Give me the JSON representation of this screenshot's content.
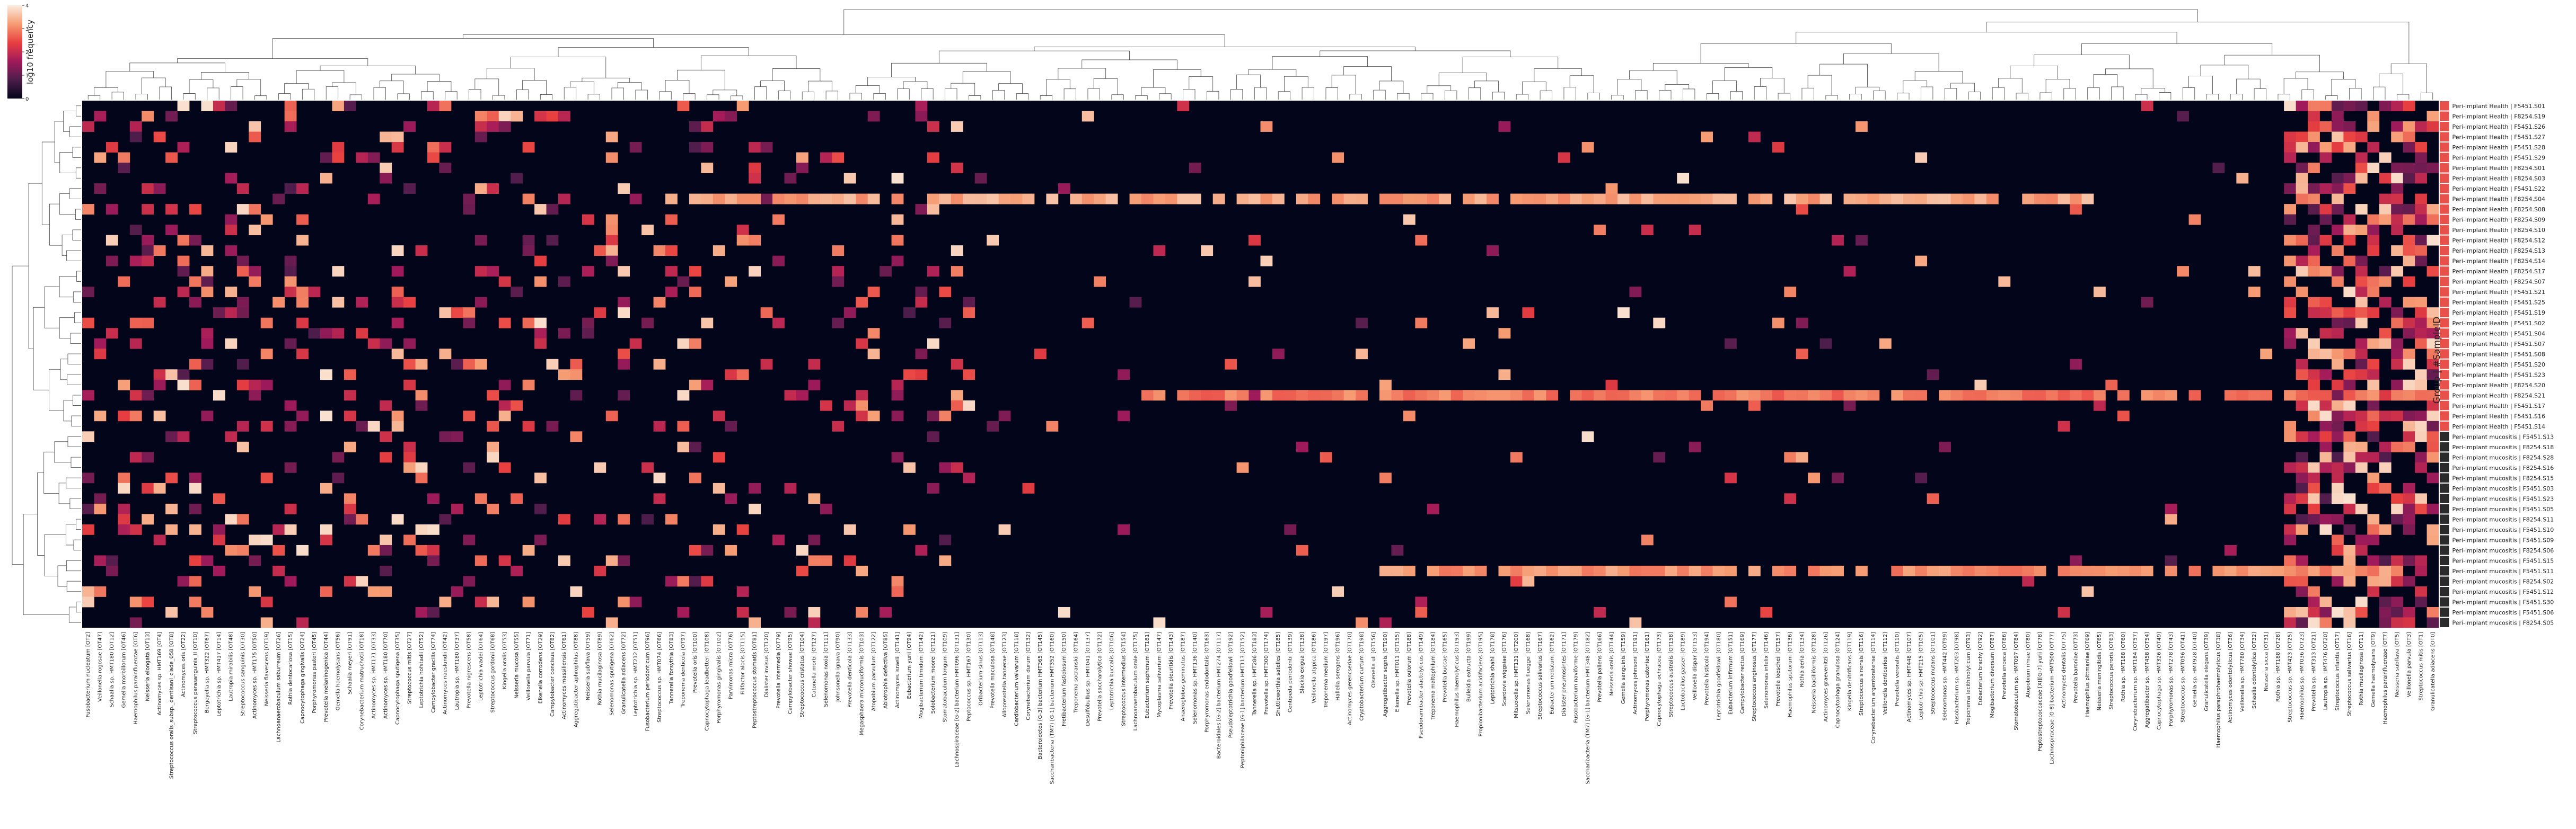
{
  "chart_data": {
    "type": "heatmap",
    "title": "",
    "colorbar": {
      "label": "log10 frequency",
      "ticks": [
        "0",
        "1",
        "2",
        "3",
        "4"
      ],
      "range": [
        0,
        4
      ],
      "colors": [
        "#03051a",
        "#4c1d4b",
        "#a11a5b",
        "#e83f3f",
        "#f69c73",
        "#faebdd"
      ]
    },
    "ylabel": "Group | #SampleID",
    "rows": [
      {
        "label": "Peri-implant Health | F5451.S01",
        "group": "Peri-implant Health"
      },
      {
        "label": "Peri-implant Health | F8254.S19",
        "group": "Peri-implant Health"
      },
      {
        "label": "Peri-implant Health | F5451.S26",
        "group": "Peri-implant Health"
      },
      {
        "label": "Peri-implant Health | F5451.S27",
        "group": "Peri-implant Health"
      },
      {
        "label": "Peri-implant Health | F5451.S28",
        "group": "Peri-implant Health"
      },
      {
        "label": "Peri-implant Health | F5451.S29",
        "group": "Peri-implant Health"
      },
      {
        "label": "Peri-implant Health | F8254.S01",
        "group": "Peri-implant Health"
      },
      {
        "label": "Peri-implant Health | F8254.S03",
        "group": "Peri-implant Health"
      },
      {
        "label": "Peri-implant Health | F5451.S22",
        "group": "Peri-implant Health"
      },
      {
        "label": "Peri-implant Health | F8254.S04",
        "group": "Peri-implant Health"
      },
      {
        "label": "Peri-implant Health | F8254.S08",
        "group": "Peri-implant Health"
      },
      {
        "label": "Peri-implant Health | F8254.S09",
        "group": "Peri-implant Health"
      },
      {
        "label": "Peri-implant Health | F8254.S10",
        "group": "Peri-implant Health"
      },
      {
        "label": "Peri-implant Health | F8254.S12",
        "group": "Peri-implant Health"
      },
      {
        "label": "Peri-implant Health | F8254.S13",
        "group": "Peri-implant Health"
      },
      {
        "label": "Peri-implant Health | F8254.S14",
        "group": "Peri-implant Health"
      },
      {
        "label": "Peri-implant Health | F8254.S17",
        "group": "Peri-implant Health"
      },
      {
        "label": "Peri-implant Health | F8254.S07",
        "group": "Peri-implant Health"
      },
      {
        "label": "Peri-implant Health | F5451.S21",
        "group": "Peri-implant Health"
      },
      {
        "label": "Peri-implant Health | F5451.S25",
        "group": "Peri-implant Health"
      },
      {
        "label": "Peri-implant Health | F5451.S19",
        "group": "Peri-implant Health"
      },
      {
        "label": "Peri-implant Health | F5451.S02",
        "group": "Peri-implant Health"
      },
      {
        "label": "Peri-implant Health | F5451.S04",
        "group": "Peri-implant Health"
      },
      {
        "label": "Peri-implant Health | F5451.S07",
        "group": "Peri-implant Health"
      },
      {
        "label": "Peri-implant Health | F5451.S08",
        "group": "Peri-implant Health"
      },
      {
        "label": "Peri-implant Health | F5451.S20",
        "group": "Peri-implant Health"
      },
      {
        "label": "Peri-implant Health | F5451.S23",
        "group": "Peri-implant Health"
      },
      {
        "label": "Peri-implant Health | F8254.S20",
        "group": "Peri-implant Health"
      },
      {
        "label": "Peri-implant Health | F8254.S21",
        "group": "Peri-implant Health"
      },
      {
        "label": "Peri-implant Health | F5451.S17",
        "group": "Peri-implant Health"
      },
      {
        "label": "Peri-implant Health | F5451.S16",
        "group": "Peri-implant Health"
      },
      {
        "label": "Peri-implant Health | F5451.S14",
        "group": "Peri-implant Health"
      },
      {
        "label": "Peri-implant mucositis | F5451.S13",
        "group": "Peri-implant mucositis"
      },
      {
        "label": "Peri-implant mucositis | F8254.S18",
        "group": "Peri-implant mucositis"
      },
      {
        "label": "Peri-implant mucositis | F8254.S28",
        "group": "Peri-implant mucositis"
      },
      {
        "label": "Peri-implant mucositis | F8254.S16",
        "group": "Peri-implant mucositis"
      },
      {
        "label": "Peri-implant mucositis | F8254.S15",
        "group": "Peri-implant mucositis"
      },
      {
        "label": "Peri-implant mucositis | F5451.S03",
        "group": "Peri-implant mucositis"
      },
      {
        "label": "Peri-implant mucositis | F5451.S23",
        "group": "Peri-implant mucositis"
      },
      {
        "label": "Peri-implant mucositis | F5451.S05",
        "group": "Peri-implant mucositis"
      },
      {
        "label": "Peri-implant mucositis | F8254.S11",
        "group": "Peri-implant mucositis"
      },
      {
        "label": "Peri-implant mucositis | F5451.S10",
        "group": "Peri-implant mucositis"
      },
      {
        "label": "Peri-implant mucositis | F5451.S09",
        "group": "Peri-implant mucositis"
      },
      {
        "label": "Peri-implant mucositis | F8254.S06",
        "group": "Peri-implant mucositis"
      },
      {
        "label": "Peri-implant mucositis | F5451.S15",
        "group": "Peri-implant mucositis"
      },
      {
        "label": "Peri-implant mucositis | F5451.S11",
        "group": "Peri-implant mucositis"
      },
      {
        "label": "Peri-implant mucositis | F8254.S02",
        "group": "Peri-implant mucositis"
      },
      {
        "label": "Peri-implant mucositis | F5451.S12",
        "group": "Peri-implant mucositis"
      },
      {
        "label": "Peri-implant mucositis | F5451.S30",
        "group": "Peri-implant mucositis"
      },
      {
        "label": "Peri-implant mucositis | F5451.S06",
        "group": "Peri-implant mucositis"
      },
      {
        "label": "Peri-implant mucositis | F8254.S05",
        "group": "Peri-implant mucositis"
      }
    ],
    "group_colors": {
      "Peri-implant Health": "#e8504a",
      "Peri-implant mucositis": "#2b2b2b"
    },
    "columns": [
      "Fusobacterium nucleatum [OT2]",
      "Veillonella rogosae [OT47]",
      "Schaalia sp. HMT180 [OT12]",
      "Gemella morbillorum [OT46]",
      "Haemophilus parainfluenzae [OT6]",
      "Neisseria elongata [OT13]",
      "Actinomyces sp. HMT169 [OT4]",
      "Streptococcus oralis_subsp._dentisani_clade_058 [OT8]",
      "Actinomyces oris [OT22]",
      "Streptococcus parasanguinis_II [OT10]",
      "Bergeyella sp. HMT322 [OT67]",
      "Leptotrichia sp. HMT417 [OT14]",
      "Lautropia mirabilis [OT48]",
      "Streptococcus sanguinis [OT30]",
      "Actinomyces sp. HMT175 [OT50]",
      "Neisseria flavescens [OT19]",
      "Lachnoanaerobaculum saburreum [OT26]",
      "Rothia dentocariosa [OT15]",
      "Capnocytophaga gingivalis [OT24]",
      "Porphyromonas pasteri [OT45]",
      "Prevotella melaninogenica [OT44]",
      "Gemella haemolysans [OT56]",
      "Schaalia meyeri [OT91]",
      "Corynebacterium matruchotii [OT18]",
      "Actinomyces sp. HMT171 [OT33]",
      "Actinomyces sp. HMT180 [OT70]",
      "Capnocytophaga sputigena [OT35]",
      "Streptococcus mitis [OT27]",
      "Leptotrichia hofstadii [OT52]",
      "Campylobacter gracilis [OT74]",
      "Actinomyces naeslundii [OT42]",
      "Lautropia sp. HMT180 [OT37]",
      "Prevotella nigrescens [OT58]",
      "Leptotrichia wadei [OT64]",
      "Streptococcus gordonii [OT68]",
      "Kingella oralis [OT53]",
      "Neisseria mucosa [OT55]",
      "Veillonella parvula [OT71]",
      "Eikenella corrodens [OT29]",
      "Campylobacter concisus [OT82]",
      "Actinomyces massiliensis [OT61]",
      "Aggregatibacter aphrophilus [OT88]",
      "Neisseria subflava [OT59]",
      "Rothia mucilaginosa [OT89]",
      "Selenomonas sputigena [OT62]",
      "Granulicatella adiacens [OT72]",
      "Leptotrichia sp. HMT212 [OT51]",
      "Fusobacterium periodonticum [OT96]",
      "Streptococcus sp. HMT074 [OT66]",
      "Tannerella forsythia [OT83]",
      "Treponema denticola [OT97]",
      "Prevotella oris [OT100]",
      "Capnocytophaga leadbetteri [OT108]",
      "Porphyromonas gingivalis [OT102]",
      "Parvimonas micra [OT76]",
      "Filifactor alocis [OT115]",
      "Peptostreptococcus stomatis [OT81]",
      "Dialister invisus [OT120]",
      "Prevotella intermedia [OT79]",
      "Campylobacter showae [OT95]",
      "Streptococcus cristatus [OT104]",
      "Catonella morbi [OT127]",
      "Selenomonas noxia [OT111]",
      "Johnsonella ignava [OT90]",
      "Prevotella denticola [OT133]",
      "Megasphaera micronuciformis [OT103]",
      "Atopobium parvulum [OT122]",
      "Abiotrophia defectiva [OT85]",
      "Actinomyces israelii [OT141]",
      "Eubacterium yurii [OT94]",
      "Mogibacterium timidum [OT142]",
      "Solobacterium moorei [OT121]",
      "Stomatobaculum longum [OT109]",
      "Lachnospiraceae [G-2] bacterium HMT096 [OT131]",
      "Peptococcus sp. HMT167 [OT130]",
      "Oribacterium sinus [OT113]",
      "Prevotella maculosa [OT148]",
      "Alloprevotella tannerae [OT123]",
      "Cardiobacterium valvarum [OT118]",
      "Corynebacterium durum [OT132]",
      "Bacteroidetes [G-3] bacterium HMT365 [OT145]",
      "Saccharibacteria (TM7) [G-1] bacterium HMT352 [OT160]",
      "Fretibacterium fastidiosum [OT150]",
      "Treponema socranskii [OT164]",
      "Desulfobulbus sp. HMT041 [OT137]",
      "Prevotella saccharolytica [OT172]",
      "Leptotrichia buccalis [OT106]",
      "Streptococcus intermedius [OT154]",
      "Lachnoanaerobaculum orale [OT175]",
      "Eubacterium saphenum [OT181]",
      "Mycoplasma salivarium [OT147]",
      "Prevotella pleuritidis [OT143]",
      "Anaeroglobus geminatus [OT187]",
      "Selenomonas sp. HMT136 [OT140]",
      "Porphyromonas endodontalis [OT163]",
      "Bacteroidales [G-2] bacterium HMT274 [OT117]",
      "Pseudoleptotrichia goodfellowii [OT192]",
      "Peptoniphilaceae [G-1] bacterium HMT113 [OT152]",
      "Tannerella sp. HMT286 [OT183]",
      "Prevotella sp. HMT300 [OT174]",
      "Shuttleworthia satelles [OT185]",
      "Centipeda periodontii [OT139]",
      "Slackia exigua [OT138]",
      "Veillonella atypica [OT186]",
      "Treponema medium [OT197]",
      "Hallella seregens [OT196]",
      "Actinomyces gerencseriae [OT170]",
      "Cryptobacterium curtum [OT198]",
      "Olsenella uli [OT156]",
      "Aggregatibacter segnis [OT190]",
      "Eikenella sp. HMT011 [OT155]",
      "Prevotella oulorum [OT188]",
      "Pseudoramibacter alactolyticus [OT149]",
      "Treponema maltophilum [OT184]",
      "Prevotella buccae [OT165]",
      "Haemophilus haemolyticus [OT193]",
      "Bulleidia extructa [OT199]",
      "Propionibacterium acidifaciens [OT195]",
      "Leptotrichia shahii [OT178]",
      "Scardovia wiggsiae [OT176]",
      "Mitsuokella sp. HMT131 [OT200]",
      "Selenomonas flueggei [OT168]",
      "Streptococcus salivarius [OT167]",
      "Eubacterium nodatum [OT162]",
      "Dialister pneumosintes [OT171]",
      "Fusobacterium naviforme [OT179]",
      "Saccharibacteria (TM7) [G-1] bacterium HMT348 [OT182]",
      "Prevotella pallens [OT166]",
      "Neisseria oralis [OT144]",
      "Gemella sanguinis [OT159]",
      "Actinomyces johnsonii [OT191]",
      "Porphyromonas catoniae [OT161]",
      "Capnocytophaga ochracea [OT173]",
      "Streptococcus australis [OT158]",
      "Lactobacillus gasseri [OT189]",
      "Veillonella dispar [OT153]",
      "Prevotella histicola [OT194]",
      "Leptotrichia goodfellowii [OT180]",
      "Eubacterium infirmum [OT151]",
      "Campylobacter rectus [OT169]",
      "Streptococcus anginosus [OT177]",
      "Selenomonas infelix [OT146]",
      "Prevotella loescheii [OT157]",
      "Haemophilus sputorum [OT136]",
      "Rothia aeria [OT134]",
      "Neisseria bacilliformis [OT128]",
      "Actinomyces graevenitzii [OT126]",
      "Capnocytophaga granulosa [OT124]",
      "Kingella denitrificans [OT119]",
      "Streptococcus sinensis [OT116]",
      "Corynebacterium argentoratense [OT114]",
      "Veillonella denticariosi [OT112]",
      "Prevotella veroralis [OT110]",
      "Actinomyces sp. HMT448 [OT107]",
      "Leptotrichia sp. HMT215 [OT105]",
      "Streptococcus mutans [OT101]",
      "Selenomonas sp. HMT442 [OT99]",
      "Fusobacterium sp. HMT203 [OT98]",
      "Treponema lecithinolyticum [OT93]",
      "Eubacterium brachy [OT92]",
      "Mogibacterium diversum [OT87]",
      "Prevotella enoeca [OT86]",
      "Stomatobaculum sp. HMT097 [OT84]",
      "Atopobium rimae [OT80]",
      "Peptostreptococcaceae [XI][G-7] yurii [OT78]",
      "Lachnospiraceae [G-8] bacterium HMT500 [OT77]",
      "Actinomyces dentalis [OT75]",
      "Prevotella baroniae [OT73]",
      "Haemophilus pittmaniae [OT69]",
      "Neisseria meningitidis [OT65]",
      "Streptococcus peroris [OT63]",
      "Rothia sp. HMT188 [OT60]",
      "Corynebacterium sp. HMT184 [OT57]",
      "Aggregatibacter sp. HMT458 [OT54]",
      "Capnocytophaga sp. HMT326 [OT49]",
      "Porphyromonas sp. HMT278 [OT43]",
      "Streptococcus sp. HMT056 [OT41]",
      "Gemella sp. HMT928 [OT40]",
      "Granulicatella elegans [OT39]",
      "Haemophilus paraphrohaemolyticus [OT38]",
      "Actinomyces odontolyticus [OT36]",
      "Veillonella sp. HMT780 [OT34]",
      "Schaalia odontolytica [OT32]",
      "Neisseria sicca [OT31]",
      "Rothia sp. HMT188 [OT28]",
      "Streptococcus sp. HMT423 [OT25]",
      "Haemophilus sp. HMT036 [OT23]",
      "Prevotella sp. HMT313 [OT21]",
      "Lautropia sp. HMT476 [OT20]",
      "Streptococcus infantis [OT17]",
      "Streptococcus salivarius [OT16]",
      "Rothia mucilaginosa [OT11]",
      "Gemella haemolysans [OT9]",
      "Haemophilus parainfluenzae [OT7]",
      "Neisseria subflava [OT5]",
      "Veillonella parvula [OT3]",
      "Streptococcus mitis [OT1]",
      "Granulicatella adiacens [OT0]"
    ]
  }
}
